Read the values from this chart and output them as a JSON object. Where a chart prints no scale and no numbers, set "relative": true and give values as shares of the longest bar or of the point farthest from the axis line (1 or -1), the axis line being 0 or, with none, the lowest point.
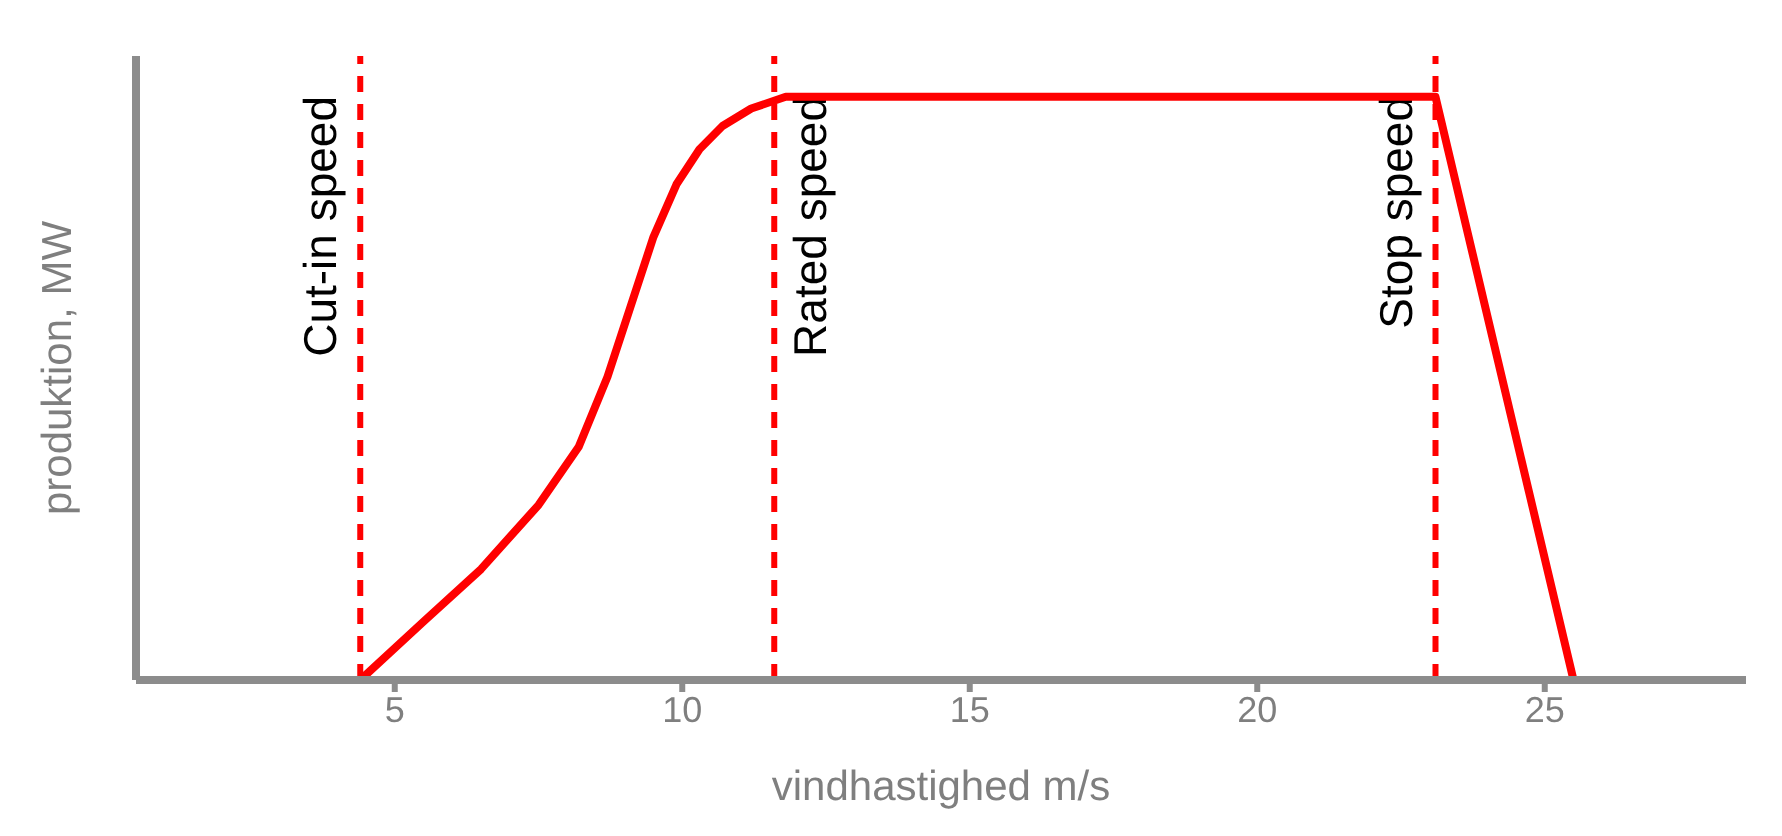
{
  "chart_data": {
    "type": "line",
    "xlabel": "vindhastighed m/s",
    "ylabel": "produktion, MW",
    "relative": true,
    "xlim": [
      0.5,
      28.5
    ],
    "xticks": [
      5,
      10,
      15,
      20,
      25
    ],
    "series": [
      {
        "color": "#ff0000",
        "x": [
          4.4,
          5.5,
          6.5,
          7.5,
          8.2,
          8.7,
          9.1,
          9.5,
          9.9,
          10.3,
          10.7,
          11.2,
          11.8,
          23.1,
          25.5
        ],
        "values": [
          0,
          0.1,
          0.19,
          0.3,
          0.4,
          0.52,
          0.64,
          0.76,
          0.85,
          0.91,
          0.95,
          0.98,
          1,
          1,
          0
        ]
      }
    ],
    "ref_lines": [
      {
        "axis": "x",
        "value": 4.4,
        "label": "Cut-in speed",
        "color": "#ff0000",
        "line_style": "dashed"
      },
      {
        "axis": "x",
        "value": 11.6,
        "label": "Rated speed",
        "color": "#ff0000",
        "line_style": "dashed"
      },
      {
        "axis": "x",
        "value": 23.1,
        "label": "Stop speed",
        "color": "#ff0000",
        "line_style": "dashed"
      }
    ],
    "grid": false,
    "marker": "none",
    "line_style": "solid",
    "legend": false
  }
}
